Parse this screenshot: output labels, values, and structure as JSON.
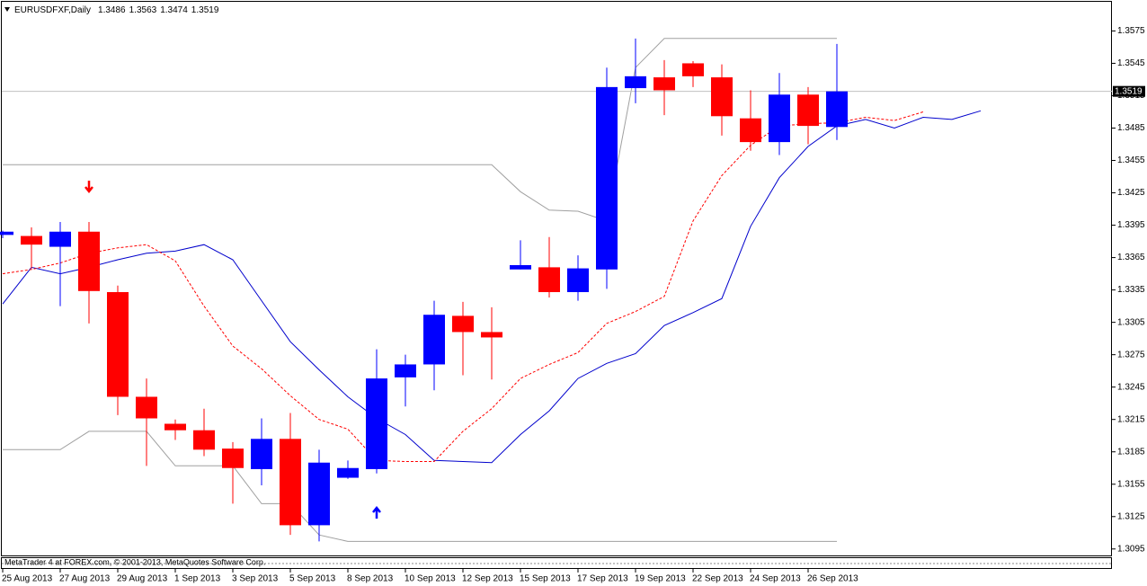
{
  "chart_data": {
    "type": "candlestick",
    "title": "EURUSDFXF,Daily",
    "footer": "MetaTrader 4 at FOREX.com, © 2001-2013, MetaQuotes Software Corp.",
    "categories": [
      "25 Aug 2013",
      null,
      "27 Aug 2013",
      null,
      "29 Aug 2013",
      null,
      "1 Sep 2013",
      null,
      "3 Sep 2013",
      null,
      "5 Sep 2013",
      null,
      "8 Sep 2013",
      null,
      "10 Sep 2013",
      null,
      "12 Sep 2013",
      null,
      "15 Sep 2013",
      null,
      "17 Sep 2013",
      null,
      "19 Sep 2013",
      null,
      "22 Sep 2013",
      null,
      "24 Sep 2013",
      null,
      "26 Sep 2013",
      null
    ],
    "open": [
      1.3386,
      1.3385,
      1.3375,
      1.3389,
      1.3333,
      1.3236,
      1.3211,
      1.3205,
      1.3188,
      1.3169,
      1.3197,
      1.3117,
      1.3161,
      1.3169,
      1.3254,
      1.3266,
      1.3311,
      1.3296,
      1.3354,
      1.3356,
      1.3333,
      1.3354,
      1.3522,
      1.3532,
      1.3545,
      1.3532,
      1.3494,
      1.3472,
      1.3516,
      1.3486
    ],
    "high": [
      1.339,
      1.3393,
      1.3398,
      1.3398,
      1.3339,
      1.3253,
      1.3215,
      1.3225,
      1.3194,
      1.3216,
      1.3221,
      1.3187,
      1.3177,
      1.328,
      1.3275,
      1.3325,
      1.3324,
      1.3319,
      1.3381,
      1.3384,
      1.3367,
      1.3541,
      1.3568,
      1.3548,
      1.3547,
      1.3544,
      1.352,
      1.3536,
      1.3523,
      1.3563
    ],
    "low": [
      1.3383,
      1.3355,
      1.332,
      1.3304,
      1.3219,
      1.3172,
      1.3196,
      1.3181,
      1.3137,
      1.3154,
      1.3108,
      1.3102,
      1.316,
      1.3165,
      1.3227,
      1.3242,
      1.3256,
      1.3252,
      1.3354,
      1.3328,
      1.3325,
      1.3336,
      1.3508,
      1.3497,
      1.3523,
      1.3478,
      1.3464,
      1.346,
      1.347,
      1.3474
    ],
    "close": [
      1.3389,
      1.3377,
      1.3389,
      1.3334,
      1.3236,
      1.3216,
      1.3205,
      1.3187,
      1.317,
      1.3197,
      1.3117,
      1.3175,
      1.317,
      1.3253,
      1.3266,
      1.3312,
      1.3296,
      1.3291,
      1.3358,
      1.3333,
      1.3355,
      1.3523,
      1.3533,
      1.352,
      1.3533,
      1.3496,
      1.3472,
      1.3516,
      1.3487,
      1.3519
    ],
    "up_color": "#0000ff",
    "down_color": "#ff0000",
    "indicators": [
      {
        "color": "#0000cc",
        "dashed": false,
        "values": [
          1.3322,
          1.3356,
          1.335,
          1.3356,
          1.3363,
          1.3369,
          1.3371,
          1.3377,
          1.3363,
          1.3325,
          1.3287,
          1.3261,
          1.3236,
          1.3216,
          1.3201,
          1.3177,
          1.3176,
          1.3175,
          1.3201,
          1.3223,
          1.3253,
          1.3267,
          1.3276,
          1.3302,
          1.3314,
          1.3327,
          1.3394,
          1.3439,
          1.3468,
          1.3487,
          1.3493,
          1.3485,
          1.3495,
          1.3493,
          1.3501
        ]
      },
      {
        "color": "#ff0000",
        "dashed": true,
        "values": [
          1.335,
          1.3354,
          1.336,
          1.3369,
          1.3374,
          1.3377,
          1.3362,
          1.332,
          1.3283,
          1.3262,
          1.3237,
          1.3215,
          1.3206,
          1.3177,
          1.3176,
          1.3176,
          1.3204,
          1.3225,
          1.3253,
          1.3266,
          1.3277,
          1.3304,
          1.3315,
          1.3329,
          1.3399,
          1.3441,
          1.3469,
          1.3487,
          1.3489,
          1.349,
          1.3495,
          1.3492,
          1.35,
          null,
          null
        ]
      },
      {
        "color": "#a0a0a0",
        "dashed": false,
        "values": [
          1.3451,
          1.3451,
          1.3451,
          1.3451,
          1.3451,
          1.3451,
          1.3451,
          1.3451,
          1.3451,
          1.3451,
          1.3451,
          1.3451,
          1.3451,
          1.3451,
          1.3451,
          1.3451,
          1.3451,
          1.3451,
          1.3426,
          1.3409,
          1.3408,
          1.3399,
          1.3541,
          1.3568,
          1.3568,
          1.3568,
          1.3568,
          1.3568,
          1.3568,
          1.3568
        ]
      },
      {
        "color": "#a0a0a0",
        "dashed": false,
        "values": [
          1.3187,
          1.3187,
          1.3187,
          1.3204,
          1.3204,
          1.3204,
          1.3172,
          1.3172,
          1.3172,
          1.3137,
          1.3137,
          1.3108,
          1.3102,
          1.3102,
          1.3102,
          1.3102,
          1.3102,
          1.3102,
          1.3102,
          1.3102,
          1.3102,
          1.3102,
          1.3102,
          1.3102,
          1.3102,
          1.3102,
          1.3102,
          1.3102,
          1.3102,
          1.3102
        ]
      }
    ],
    "ylim": [
      1.3089,
      1.3602
    ],
    "yticks": [
      1.3575,
      1.3545,
      1.3515,
      1.3485,
      1.3455,
      1.3425,
      1.3395,
      1.3365,
      1.3335,
      1.3305,
      1.3275,
      1.3245,
      1.3215,
      1.3185,
      1.3155,
      1.3125,
      1.3095
    ]
  }
}
